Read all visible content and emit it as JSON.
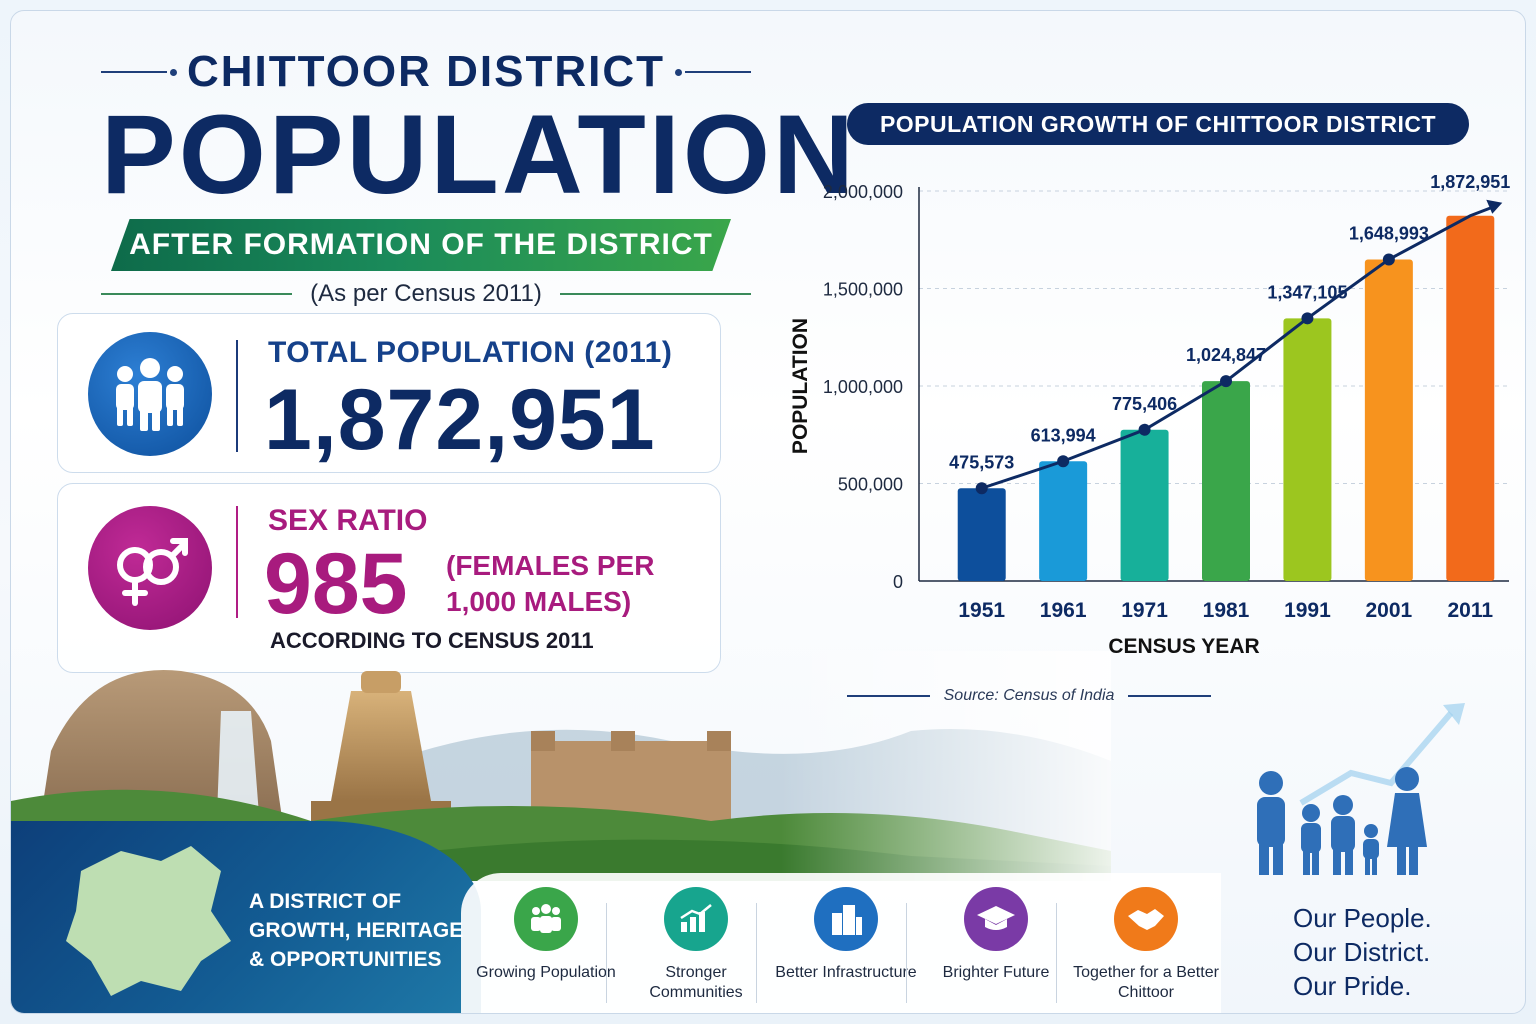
{
  "header": {
    "kicker": "CHITTOOR DISTRICT",
    "title": "POPULATION",
    "banner": "AFTER FORMATION OF THE DISTRICT",
    "census_note": "(As per Census 2011)"
  },
  "stats": {
    "population_label": "TOTAL POPULATION (2011)",
    "population_value": "1,872,951",
    "sex_ratio_label": "SEX RATIO",
    "sex_ratio_value": "985",
    "sex_ratio_unit": "(FEMALES PER 1,000 MALES)",
    "sex_ratio_note": "ACCORDING TO CENSUS 2011"
  },
  "tagline": "A DISTRICT OF GROWTH, HERITAGE & OPPORTUNITIES",
  "features": [
    {
      "label": "Growing Population",
      "icon": "people-group-icon",
      "color": "#3aa64a"
    },
    {
      "label": "Stronger Communities",
      "icon": "bar-growth-icon",
      "color": "#17a58e"
    },
    {
      "label": "Better Infrastructure",
      "icon": "buildings-icon",
      "color": "#1f6fc0"
    },
    {
      "label": "Brighter Future",
      "icon": "graduation-cap-icon",
      "color": "#7a3aa6"
    },
    {
      "label": "Together for a Better Chittoor",
      "icon": "handshake-icon",
      "color": "#f07a1a"
    }
  ],
  "motto": [
    "Our People.",
    "Our District.",
    "Our Pride."
  ],
  "colors": {
    "navy": "#0d2a63",
    "magenta": "#a81b7e",
    "green": "#3aa64a"
  },
  "chart_data": {
    "type": "bar",
    "title": "POPULATION GROWTH OF CHITTOOR DISTRICT",
    "xlabel": "CENSUS YEAR",
    "ylabel": "POPULATION",
    "categories": [
      "1951",
      "1961",
      "1971",
      "1981",
      "1991",
      "2001",
      "2011"
    ],
    "values": [
      475573,
      613994,
      775406,
      1024847,
      1347105,
      1648993,
      1872951
    ],
    "value_labels": [
      "475,573",
      "613,994",
      "775,406",
      "1,024,847",
      "1,347,105",
      "1,648,993",
      "1,872,951"
    ],
    "bar_colors": [
      "#0d4f9c",
      "#1a9ad8",
      "#17b09a",
      "#3aa64a",
      "#9cc61f",
      "#f7931e",
      "#f26a1b"
    ],
    "ylim": [
      0,
      2000000
    ],
    "yticks": [
      0,
      500000,
      1000000,
      1500000,
      2000000
    ],
    "ytick_labels": [
      "0",
      "500,000",
      "1,000,000",
      "1,500,000",
      "2,000,000"
    ],
    "grid": true,
    "trend_line": true,
    "source": "Source: Census of India"
  }
}
